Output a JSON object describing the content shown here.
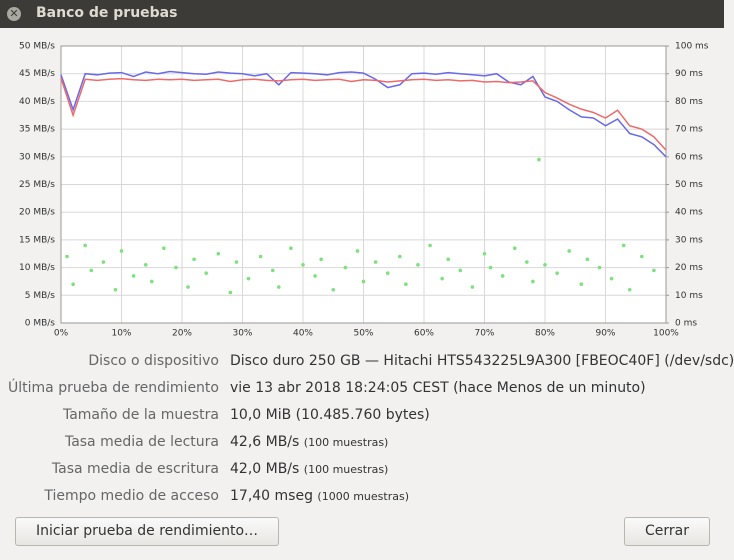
{
  "header": {
    "title": "Banco de pruebas"
  },
  "chart_data": {
    "type": "line",
    "x": [
      0,
      2,
      4,
      6,
      8,
      10,
      12,
      14,
      16,
      18,
      20,
      22,
      24,
      26,
      28,
      30,
      32,
      34,
      36,
      38,
      40,
      42,
      44,
      46,
      48,
      50,
      52,
      54,
      56,
      58,
      60,
      62,
      64,
      66,
      68,
      70,
      72,
      74,
      76,
      78,
      80,
      82,
      84,
      86,
      88,
      90,
      92,
      94,
      96,
      98,
      100
    ],
    "series": [
      {
        "color": "#6a6ae8",
        "values": [
          44.8,
          38.5,
          45.0,
          44.8,
          45.1,
          45.2,
          44.5,
          45.3,
          45.0,
          45.4,
          45.2,
          45.0,
          44.9,
          45.3,
          45.1,
          45.0,
          44.6,
          45.0,
          43.0,
          45.2,
          45.1,
          45.0,
          44.8,
          45.2,
          45.3,
          45.1,
          44.0,
          42.5,
          43.0,
          45.0,
          45.1,
          44.9,
          45.2,
          45.0,
          44.8,
          44.6,
          45.0,
          43.5,
          43.0,
          44.5,
          40.8,
          40.0,
          38.5,
          37.2,
          37.0,
          35.6,
          36.8,
          34.2,
          33.6,
          32.2,
          30.0
        ]
      },
      {
        "color": "#ee6a6a",
        "values": [
          44.2,
          37.5,
          44.0,
          43.8,
          44.0,
          44.1,
          43.9,
          43.8,
          44.0,
          43.9,
          44.0,
          43.8,
          43.9,
          44.0,
          43.6,
          43.9,
          44.0,
          43.8,
          43.7,
          43.9,
          44.0,
          43.8,
          43.9,
          44.0,
          43.6,
          43.9,
          43.8,
          43.5,
          43.7,
          43.9,
          44.0,
          43.8,
          43.9,
          43.7,
          43.8,
          43.5,
          43.6,
          43.4,
          43.5,
          43.7,
          41.6,
          40.6,
          39.5,
          38.6,
          38.0,
          37.0,
          38.4,
          35.6,
          35.0,
          33.6,
          31.2
        ]
      },
      {
        "type": "scatter",
        "axis": "y2",
        "color": "#7ee07e",
        "x": [
          1,
          2,
          4,
          5,
          7,
          9,
          10,
          12,
          14,
          15,
          17,
          19,
          21,
          22,
          24,
          26,
          28,
          29,
          31,
          33,
          35,
          36,
          38,
          40,
          42,
          43,
          45,
          47,
          49,
          50,
          52,
          54,
          56,
          57,
          59,
          61,
          63,
          64,
          66,
          68,
          70,
          71,
          73,
          75,
          77,
          78,
          79,
          80,
          82,
          84,
          86,
          87,
          89,
          91,
          93,
          94,
          96,
          98
        ],
        "values": [
          24,
          14,
          28,
          19,
          22,
          12,
          26,
          17,
          21,
          15,
          27,
          20,
          13,
          23,
          18,
          25,
          11,
          22,
          16,
          24,
          19,
          13,
          27,
          21,
          17,
          23,
          12,
          20,
          26,
          15,
          22,
          18,
          24,
          14,
          21,
          28,
          16,
          23,
          19,
          13,
          25,
          20,
          17,
          27,
          22,
          15,
          59,
          21,
          18,
          26,
          14,
          23,
          20,
          16,
          28,
          12,
          24,
          19
        ]
      }
    ],
    "xlim": [
      0,
      100
    ],
    "xticks": [
      {
        "value": 0,
        "label": "0%"
      },
      {
        "value": 10,
        "label": "10%"
      },
      {
        "value": 20,
        "label": "20%"
      },
      {
        "value": 30,
        "label": "30%"
      },
      {
        "value": 40,
        "label": "40%"
      },
      {
        "value": 50,
        "label": "50%"
      },
      {
        "value": 60,
        "label": "60%"
      },
      {
        "value": 70,
        "label": "70%"
      },
      {
        "value": 80,
        "label": "80%"
      },
      {
        "value": 90,
        "label": "90%"
      },
      {
        "value": 100,
        "label": "100%"
      }
    ],
    "ylim": [
      0,
      50
    ],
    "yticks": [
      {
        "value": 0,
        "label": "0 MB/s"
      },
      {
        "value": 5,
        "label": "5 MB/s"
      },
      {
        "value": 10,
        "label": "10 MB/s"
      },
      {
        "value": 15,
        "label": "15 MB/s"
      },
      {
        "value": 20,
        "label": "20 MB/s"
      },
      {
        "value": 25,
        "label": "25 MB/s"
      },
      {
        "value": 30,
        "label": "30 MB/s"
      },
      {
        "value": 35,
        "label": "35 MB/s"
      },
      {
        "value": 40,
        "label": "40 MB/s"
      },
      {
        "value": 45,
        "label": "45 MB/s"
      },
      {
        "value": 50,
        "label": "50 MB/s"
      }
    ],
    "y2lim": [
      0,
      100
    ],
    "y2ticks": [
      {
        "value": 0,
        "label": "0 ms"
      },
      {
        "value": 10,
        "label": "10 ms"
      },
      {
        "value": 20,
        "label": "20 ms"
      },
      {
        "value": 30,
        "label": "30 ms"
      },
      {
        "value": 40,
        "label": "40 ms"
      },
      {
        "value": 50,
        "label": "50 ms"
      },
      {
        "value": 60,
        "label": "60 ms"
      },
      {
        "value": 70,
        "label": "70 ms"
      },
      {
        "value": 80,
        "label": "80 ms"
      },
      {
        "value": 90,
        "label": "90 ms"
      },
      {
        "value": 100,
        "label": "100 ms"
      }
    ],
    "grid": true
  },
  "info": {
    "rows": [
      {
        "label": "Disco o dispositivo",
        "value": "Disco duro 250 GB — Hitachi HTS543225L9A300 [FBEOC40F] (/dev/sdc)"
      },
      {
        "label": "Última prueba de rendimiento",
        "value": "vie 13 abr 2018 18:24:05 CEST (hace Menos de un minuto)"
      },
      {
        "label": "Tamaño de la muestra",
        "value": "10,0 MiB (10.485.760 bytes)"
      },
      {
        "label": "Tasa media de lectura",
        "value": "42,6 MB/s",
        "note": "(100 muestras)"
      },
      {
        "label": "Tasa media de escritura",
        "value": "42,0 MB/s",
        "note": "(100 muestras)"
      },
      {
        "label": "Tiempo medio de acceso",
        "value": "17,40 mseg",
        "note": "(1000 muestras)"
      }
    ]
  },
  "buttons": {
    "start": "Iniciar prueba de rendimiento…",
    "close": "Cerrar"
  }
}
